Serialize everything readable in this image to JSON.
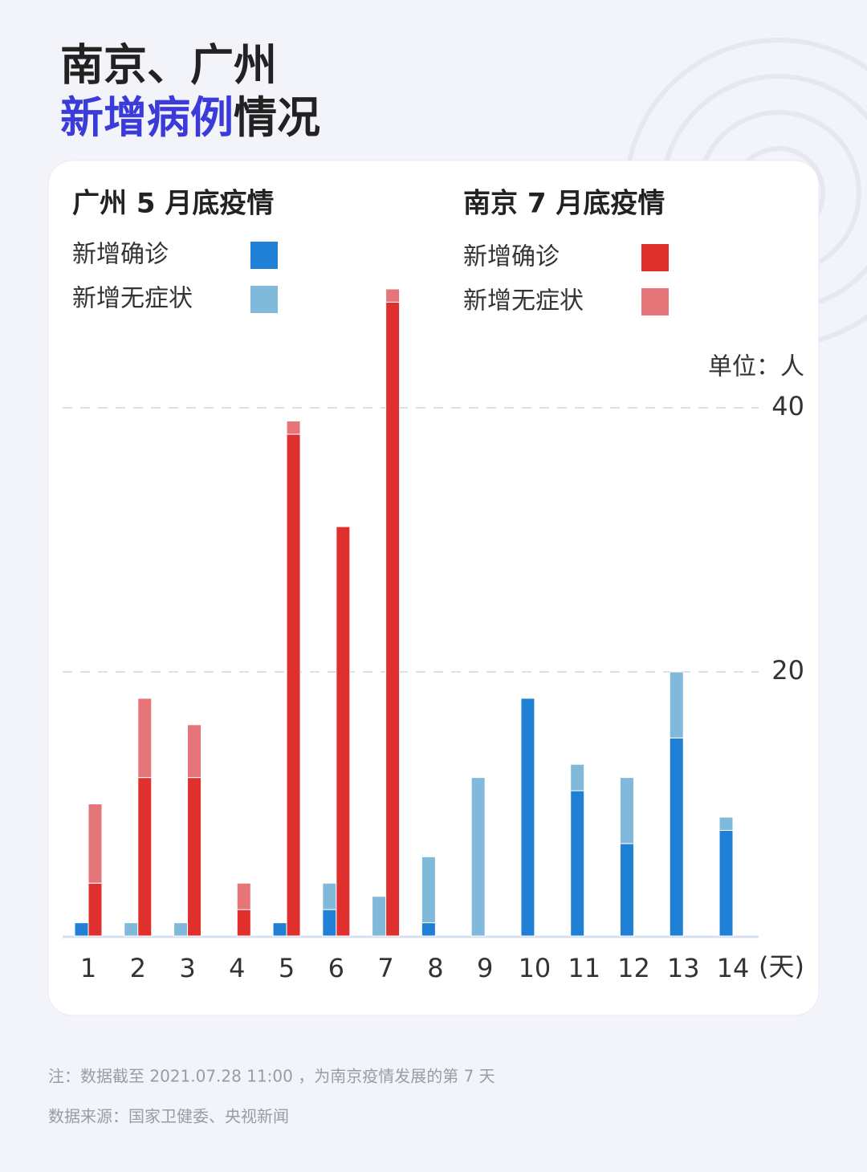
{
  "title": "南京、广州",
  "subtitle_highlight": "新增病例",
  "subtitle": "情况",
  "chart_data": {
    "type": "stacked-grouped-bar",
    "unit_label": "单位：人",
    "x_unit": "(天)",
    "groups": [
      "广州 5 月底疫情",
      "南京 7 月底疫情"
    ],
    "categories": [
      "1",
      "2",
      "3",
      "4",
      "5",
      "6",
      "7",
      "8",
      "9",
      "10",
      "11",
      "12",
      "13",
      "14"
    ],
    "series": [
      {
        "name": "新增确诊",
        "group": 0,
        "color": "#1f80d6",
        "values": [
          1,
          0,
          0,
          0,
          1,
          2,
          0,
          1,
          0,
          18,
          11,
          7,
          15,
          8
        ]
      },
      {
        "name": "新增无症状",
        "group": 0,
        "color": "#80b9da",
        "values": [
          0,
          1,
          1,
          0,
          0,
          2,
          3,
          5,
          12,
          0,
          2,
          5,
          5,
          1
        ]
      },
      {
        "name": "新增确诊",
        "group": 1,
        "color": "#e0302e",
        "values": [
          4,
          12,
          12,
          2,
          38,
          31,
          48,
          null,
          null,
          null,
          null,
          null,
          null,
          null
        ]
      },
      {
        "name": "新增无症状",
        "group": 1,
        "color": "#e57579",
        "values": [
          6,
          6,
          4,
          2,
          1,
          0,
          1,
          null,
          null,
          null,
          null,
          null,
          null,
          null
        ]
      }
    ],
    "ylim": [
      0,
      50
    ],
    "yticks": [
      20,
      40
    ],
    "grid": true
  },
  "notes": [
    "注：数据截至 2021.07.28 11:00 ，为南京疫情发展的第 7 天",
    "数据来源：国家卫健委、央视新闻"
  ]
}
